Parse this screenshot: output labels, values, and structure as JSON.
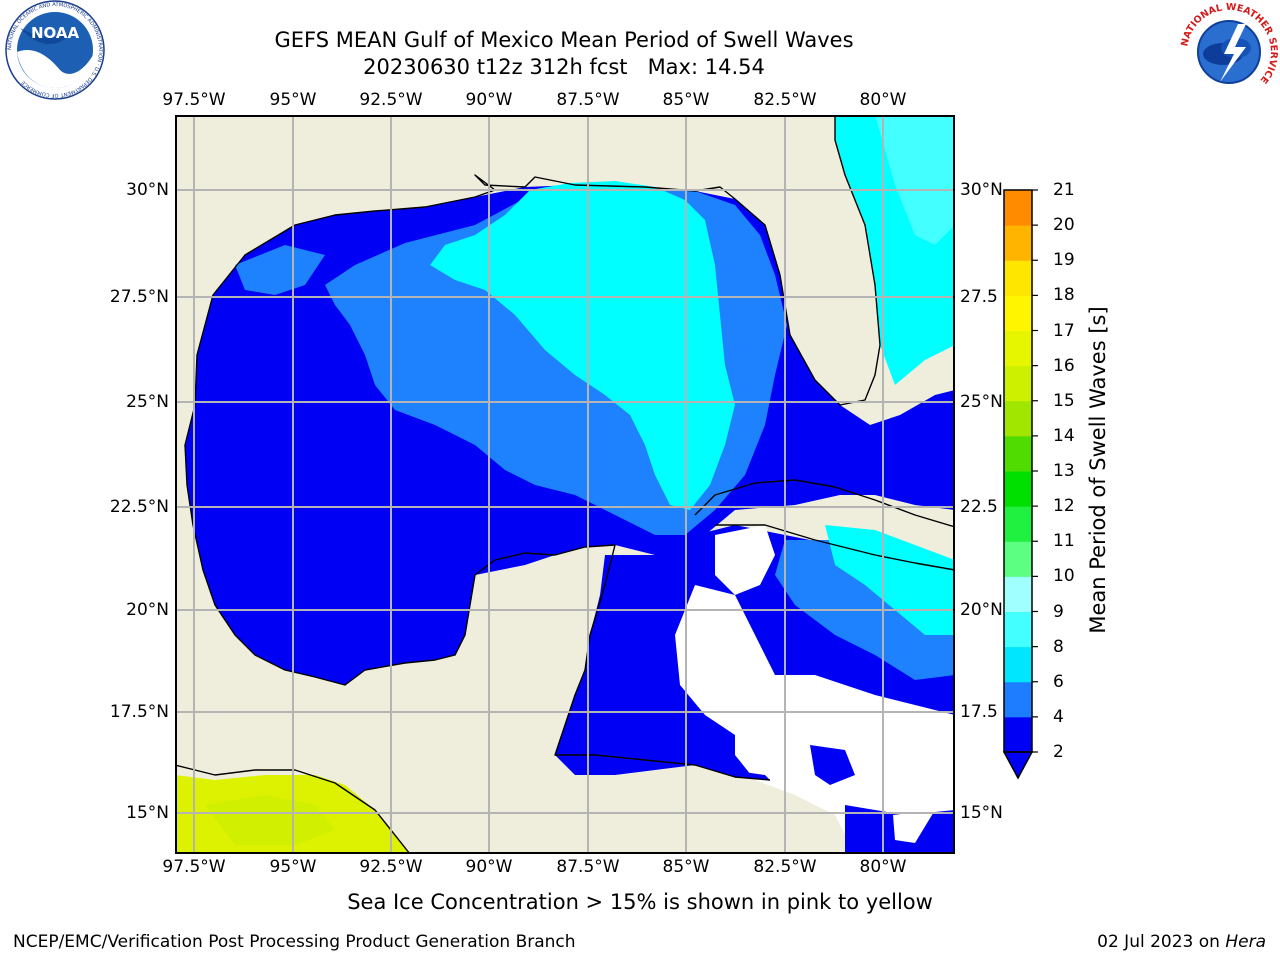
{
  "title": {
    "line1": "GEFS MEAN Gulf of Mexico Mean Period of Swell Waves",
    "line2": "20230630 t12z 312h fcst   Max: 14.54"
  },
  "map": {
    "lon_labels": [
      "97.5°W",
      "95°W",
      "92.5°W",
      "90°W",
      "87.5°W",
      "85°W",
      "82.5°W",
      "80°W"
    ],
    "lat_labels_left": [
      "30°N",
      "27.5°N",
      "25°N",
      "22.5°N",
      "20°N",
      "17.5°N",
      "15°N"
    ],
    "lat_labels_right": [
      "30°N",
      "27.5",
      "25°N",
      "22.5",
      "20°N",
      "17.5",
      "15°N"
    ],
    "colors": {
      "land": "#efeedc",
      "coast": "#000000",
      "grid": "#b4b4b4",
      "swell_2_4": "#0000f5",
      "swell_4_6": "#1e82ff",
      "swell_6_8": "#00ffff",
      "swell_8_9": "#44ffff",
      "high_period": "#dcf200"
    }
  },
  "colorbar": {
    "label": "Mean Period of Swell Waves [s]",
    "ticks": [
      "2",
      "4",
      "6",
      "8",
      "9",
      "10",
      "11",
      "12",
      "13",
      "14",
      "15",
      "16",
      "17",
      "18",
      "19",
      "20",
      "21"
    ],
    "colors": [
      "#0000f5",
      "#1e7cff",
      "#00e6ff",
      "#44ffff",
      "#a0ffff",
      "#5cff82",
      "#20f040",
      "#00e000",
      "#50dc00",
      "#a0e600",
      "#cdf000",
      "#e6f500",
      "#fff500",
      "#ffe600",
      "#ffb400",
      "#ff8c00",
      "#ff6400",
      "#ff3c00",
      "#ff0000"
    ]
  },
  "logos": {
    "left": {
      "name": "noaa-logo",
      "text": "NOAA",
      "ring_text": "NATIONAL OCEANIC AND ATMOSPHERIC ADMINISTRATION · U.S. DEPARTMENT OF COMMERCE"
    },
    "right": {
      "name": "nws-logo",
      "ring_text": "NATIONAL WEATHER SERVICE"
    }
  },
  "footer": {
    "sea_ice_note": "Sea Ice Concentration > 15% is shown in pink to yellow",
    "credit": "NCEP/EMC/Verification Post Processing Product Generation Branch",
    "date_prefix": "02 Jul 2023 on ",
    "host": "Hera"
  }
}
